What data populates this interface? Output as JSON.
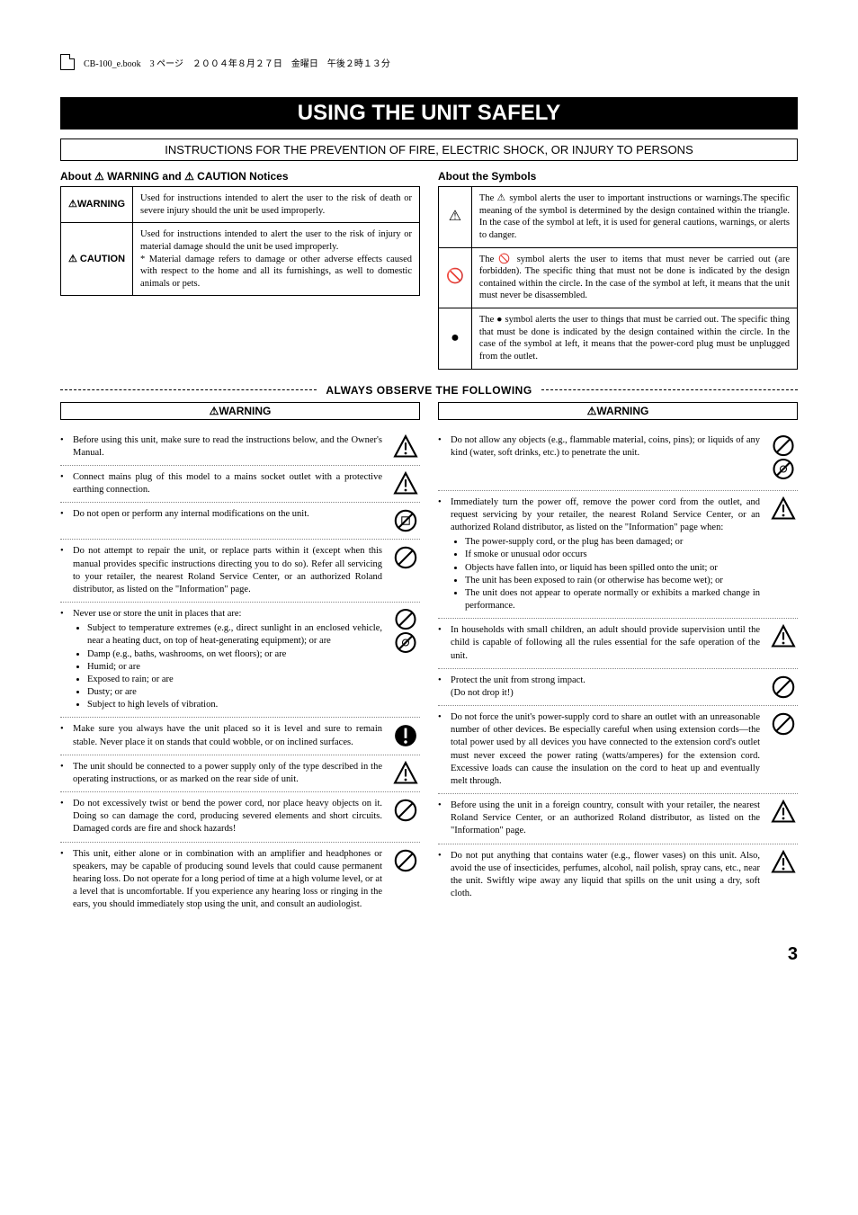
{
  "header_meta": "CB-100_e.book　3 ページ　２００４年８月２７日　金曜日　午後２時１３分",
  "main_title": "USING THE UNIT SAFELY",
  "instruction_bar": "INSTRUCTIONS FOR THE PREVENTION OF FIRE, ELECTRIC SHOCK, OR INJURY TO PERSONS",
  "about_notices_title": "About ⚠ WARNING and ⚠ CAUTION Notices",
  "about_symbols_title": "About the Symbols",
  "notices_table": [
    {
      "label": "⚠WARNING",
      "text": "Used for instructions intended to alert the user to the risk of death or severe injury should the unit be used improperly."
    },
    {
      "label": "⚠ CAUTION",
      "text": "Used for instructions intended to alert the user to the risk of injury or material damage should the unit be used improperly.<br>* Material damage refers to damage or other adverse effects caused with respect to the home and all its furnishings, as well to domestic animals or pets."
    }
  ],
  "symbols_table": [
    {
      "icon": "⚠",
      "text": "The ⚠ symbol alerts the user to important instructions or warnings.The specific meaning of the symbol is determined by the design contained within the triangle. In the case of the symbol at left, it is used for general cautions, warnings, or alerts to danger."
    },
    {
      "icon": "🚫",
      "text": "The 🚫 symbol alerts the user to items that must never be carried out (are forbidden). The specific thing that must not be done is indicated by the design contained within the circle. In the case of the symbol at left, it means that the unit must never be disassembled."
    },
    {
      "icon": "●",
      "text": "The ● symbol alerts the user to things that must be carried out. The specific thing that must be done is indicated by the design contained within the circle. In the case of the symbol at left, it means that the power-cord plug must be unplugged from the outlet."
    }
  ],
  "always_observe": "ALWAYS OBSERVE THE FOLLOWING",
  "warning_heading": "⚠WARNING",
  "left_items": [
    {
      "text": "Before using this unit, make sure to read the instructions below, and the Owner's Manual.",
      "icon": "tri-excl"
    },
    {
      "text": "Connect mains plug of this model to a mains socket outlet with a protective earthing connection.",
      "icon": "tri-excl"
    },
    {
      "text": "Do not open or perform any internal modifications on the unit.",
      "icon": "prohibit-disassemble"
    },
    {
      "text": "Do not attempt to repair the unit, or replace parts within it (except when this manual provides specific instructions directing you to do so). Refer all servicing to your retailer, the nearest Roland Service Center, or an authorized Roland distributor, as listed on the \"Information\" page.",
      "icon": "prohibit"
    },
    {
      "text": "Never use or store the unit in places that are:",
      "sub": [
        "Subject to temperature extremes (e.g., direct sunlight in an enclosed vehicle, near a heating duct, on top of heat-generating equipment); or are",
        "Damp (e.g., baths, washrooms, on wet floors); or are",
        "Humid; or are",
        "Exposed to rain; or are",
        "Dusty; or are",
        "Subject to high levels of vibration."
      ],
      "icon": "prohibit-two"
    },
    {
      "text": "Make sure you always have the unit placed so it is level and sure to remain stable. Never place it on stands that could wobble, or on inclined surfaces.",
      "icon": "circle-excl"
    },
    {
      "text": "The unit should be connected to a power supply only of the type described in the operating instructions, or as marked on the rear side of unit.",
      "icon": "tri-excl"
    },
    {
      "text": "Do not excessively twist or bend the power cord, nor place heavy objects on it. Doing so can damage the cord, producing severed elements and short circuits. Damaged cords are fire and shock hazards!",
      "icon": "prohibit"
    },
    {
      "text": "This unit, either alone or in combination with an amplifier and headphones or speakers, may be capable of producing sound levels that could cause permanent hearing loss. Do not operate for a long period of time at a high volume level, or at a level that is uncomfortable. If you experience any hearing loss or ringing in the ears, you should immediately stop using the unit, and consult an audiologist.",
      "icon": "prohibit"
    }
  ],
  "right_items": [
    {
      "text": "Do not allow any objects (e.g., flammable material, coins, pins); or liquids of any kind (water, soft drinks, etc.) to penetrate the unit.",
      "icon": "prohibit-two"
    },
    {
      "text": "Immediately turn the power off, remove the power cord from the outlet, and request servicing by your retailer, the nearest Roland Service Center, or an authorized Roland distributor, as listed on the \"Information\" page when:",
      "sub": [
        "The power-supply cord, or the plug has been damaged; or",
        "If smoke or unusual odor occurs",
        "Objects have fallen into, or liquid has been spilled onto the unit; or",
        "The unit has been exposed to rain (or otherwise has become wet); or",
        "The unit does not appear to operate normally or exhibits a marked change in performance."
      ],
      "icon": "tri-excl"
    },
    {
      "text": "In households with small children, an adult should provide supervision until the child is capable of following all the rules essential for the safe operation of the unit.",
      "icon": "tri-excl"
    },
    {
      "text": "Protect the unit from strong impact.<br>(Do not drop it!)",
      "icon": "prohibit"
    },
    {
      "text": "Do not force the unit's power-supply cord to share an outlet with an unreasonable number of other devices. Be especially careful when using extension cords—the total power used by all devices you have connected to the extension cord's outlet must never exceed the power rating (watts/amperes) for the extension cord. Excessive loads can cause the insulation on the cord to heat up and eventually melt through.",
      "icon": "prohibit"
    },
    {
      "text": "Before using the unit in a foreign country, consult with your retailer, the nearest Roland Service Center, or an authorized Roland distributor, as listed on the \"Information\" page.",
      "icon": "tri-excl"
    },
    {
      "text": "Do not put anything that contains water (e.g., flower vases) on this unit. Also, avoid the use of insecticides, perfumes, alcohol, nail polish, spray cans, etc., near the unit. Swiftly wipe away any liquid that spills on the unit using a dry, soft cloth.",
      "icon": "tri-excl"
    }
  ],
  "page_number": "3",
  "colors": {
    "black": "#000000",
    "white": "#ffffff",
    "dot_border": "#888888"
  },
  "typography": {
    "title_family": "Arial, Helvetica, sans-serif",
    "title_weight": "bold",
    "title_size_pt": 24,
    "body_family": "Times New Roman, Georgia, serif",
    "body_size_pt": 10.5,
    "heading_size_pt": 12
  }
}
